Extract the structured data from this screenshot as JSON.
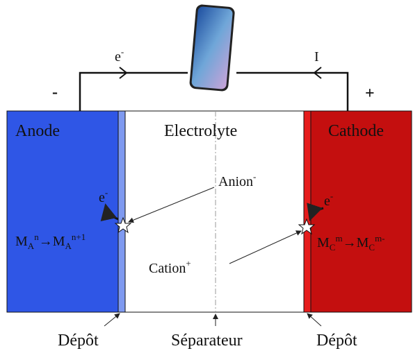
{
  "wire": {
    "electron": {
      "base": "e",
      "sup": "-"
    },
    "current": "I",
    "negative": "-",
    "positive": "+"
  },
  "regions": {
    "anode": "Anode",
    "electrolyte": "Electrolyte",
    "cathode": "Cathode"
  },
  "ions": {
    "anion": {
      "base": "Anion",
      "sup": "-"
    },
    "cation": {
      "base": "Cation",
      "sup": "+"
    }
  },
  "anode_reaction": {
    "electron": {
      "base": "e",
      "sup": "-"
    },
    "left": {
      "base": "M",
      "sub": "A",
      "sup": "n"
    },
    "arrow": "→",
    "right": {
      "base": "M",
      "sub": "A",
      "sup": "n+1"
    }
  },
  "cathode_reaction": {
    "electron": {
      "base": "e",
      "sup": "-"
    },
    "left": {
      "base": "M",
      "sub": "C",
      "sup": "m"
    },
    "arrow": "→",
    "right": {
      "base": "M",
      "sub": "C",
      "sup": "m-"
    }
  },
  "labels": {
    "depot_left": "Dépôt",
    "separator": "Séparateur",
    "depot_right": "Dépôt"
  }
}
